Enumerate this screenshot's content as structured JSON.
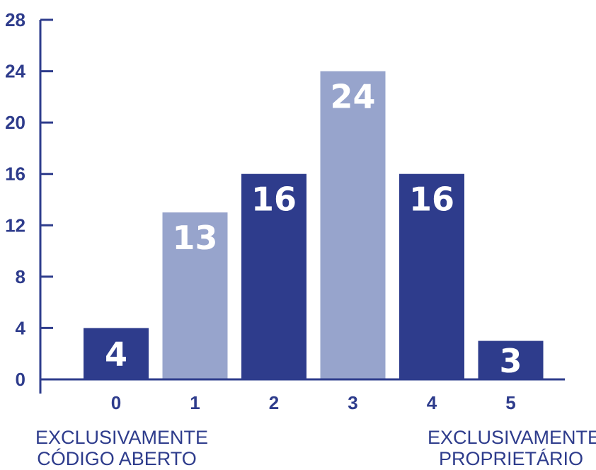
{
  "chart_data": {
    "type": "bar",
    "categories": [
      "0",
      "1",
      "2",
      "3",
      "4",
      "5"
    ],
    "values": [
      4,
      13,
      16,
      24,
      16,
      3
    ],
    "data_labels": [
      "4",
      "13",
      "16",
      "24",
      "16",
      "3"
    ],
    "bar_colors": [
      "#2e3c8c",
      "#97a4cc",
      "#2e3c8c",
      "#97a4cc",
      "#2e3c8c",
      "#2e3c8c"
    ],
    "ylim": [
      0,
      28
    ],
    "yticks": [
      "0",
      "4",
      "8",
      "12",
      "16",
      "20",
      "24",
      "28"
    ],
    "grid": false,
    "axis_color": "#2e3c8c",
    "left_annotation": {
      "line1": "EXCLUSIVAMENTE",
      "line2": "CÓDIGO ABERTO"
    },
    "right_annotation": {
      "line1": "EXCLUSIVAMENTE",
      "line2": "PROPRIETÁRIO"
    }
  }
}
